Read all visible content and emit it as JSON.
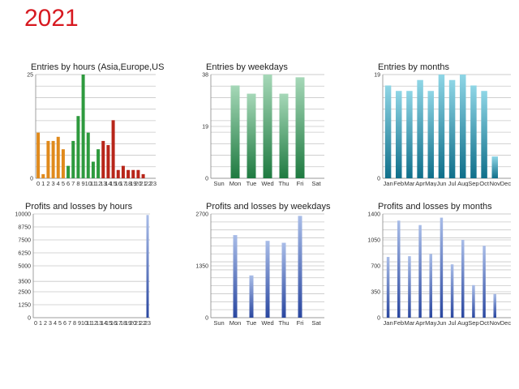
{
  "year": "2021",
  "colors": {
    "year": "#d71920",
    "grid": "#c8c8c8",
    "axis": "#888888",
    "title": "#222222",
    "tick": "#333333",
    "green_light": "#a6d8b8",
    "green_dark": "#1e7a40",
    "teal_light": "#8fd6e6",
    "teal_dark": "#0f6f8a",
    "blue_light": "#a9bde8",
    "blue_dark": "#2a47a0",
    "orange": "#e08a1c",
    "green": "#2e9a3e",
    "red": "#b8261a",
    "gold": "#e0a21c"
  },
  "chart_data": [
    {
      "id": "entries-hours",
      "type": "bar",
      "title": "Entries by hours (Asia,Europe,USA)",
      "categories": [
        "0",
        "1",
        "2",
        "3",
        "4",
        "5",
        "6",
        "7",
        "8",
        "9",
        "10",
        "11",
        "12",
        "13",
        "14",
        "15",
        "16",
        "17",
        "18",
        "19",
        "20",
        "21",
        "22",
        "23"
      ],
      "values": [
        11,
        1,
        9,
        9,
        10,
        7,
        3,
        9,
        15,
        25,
        11,
        4,
        7,
        9,
        8,
        14,
        2,
        3,
        2,
        2,
        2,
        1,
        0,
        0
      ],
      "bar_colors": [
        "#e08a1c",
        "#e08a1c",
        "#e08a1c",
        "#e08a1c",
        "#e08a1c",
        "#e08a1c",
        "#2e9a3e",
        "#2e9a3e",
        "#2e9a3e",
        "#2e9a3e",
        "#2e9a3e",
        "#2e9a3e",
        "#2e9a3e",
        "#b8261a",
        "#b8261a",
        "#b8261a",
        "#b8261a",
        "#b8261a",
        "#b8261a",
        "#b8261a",
        "#b8261a",
        "#b8261a",
        "#b8261a",
        "#e0a21c"
      ],
      "yticks": [
        0,
        25
      ],
      "ylim": [
        0,
        25
      ]
    },
    {
      "id": "entries-weekdays",
      "type": "bar",
      "title": "Entries by weekdays",
      "categories": [
        "Sun",
        "Mon",
        "Tue",
        "Wed",
        "Thu",
        "Fri",
        "Sat"
      ],
      "values": [
        0,
        34,
        31,
        38,
        31,
        37,
        0
      ],
      "gradient": "green",
      "yticks": [
        0,
        19,
        38
      ],
      "ylim": [
        0,
        38
      ]
    },
    {
      "id": "entries-months",
      "type": "bar",
      "title": "Entries by months",
      "categories": [
        "Jan",
        "Feb",
        "Mar",
        "Apr",
        "May",
        "Jun",
        "Jul",
        "Aug",
        "Sep",
        "Oct",
        "Nov",
        "Dec"
      ],
      "values": [
        17,
        16,
        16,
        18,
        16,
        19,
        18,
        19,
        17,
        16,
        4,
        0
      ],
      "gradient": "teal",
      "yticks": [
        0,
        19
      ],
      "ylim": [
        0,
        19
      ]
    },
    {
      "id": "profits-hours",
      "type": "bar",
      "title": "Profits and losses by hours",
      "categories": [
        "0",
        "1",
        "2",
        "3",
        "4",
        "5",
        "6",
        "7",
        "8",
        "9",
        "10",
        "11",
        "12",
        "13",
        "14",
        "15",
        "16",
        "17",
        "18",
        "19",
        "20",
        "21",
        "22",
        "23"
      ],
      "values": [
        0,
        0,
        0,
        0,
        0,
        0,
        0,
        0,
        0,
        0,
        0,
        0,
        0,
        0,
        0,
        0,
        0,
        0,
        0,
        0,
        0,
        0,
        0,
        9900
      ],
      "gradient": "blue",
      "yticks": [
        0,
        1250,
        2500,
        3500,
        5000,
        6250,
        7500,
        8750,
        10000
      ],
      "ylim": [
        0,
        10000
      ]
    },
    {
      "id": "profits-weekdays",
      "type": "bar",
      "title": "Profits and losses by weekdays",
      "categories": [
        "Sun",
        "Mon",
        "Tue",
        "Wed",
        "Thu",
        "Fri",
        "Sat"
      ],
      "values": [
        0,
        2150,
        1100,
        2000,
        1950,
        2650,
        0
      ],
      "gradient": "blue",
      "yticks": [
        0,
        1350,
        2700
      ],
      "ylim": [
        0,
        2700
      ]
    },
    {
      "id": "profits-months",
      "type": "bar",
      "title": "Profits and losses by months",
      "categories": [
        "Jan",
        "Feb",
        "Mar",
        "Apr",
        "May",
        "Jun",
        "Jul",
        "Aug",
        "Sep",
        "Oct",
        "Nov",
        "Dec"
      ],
      "values": [
        820,
        1310,
        830,
        1250,
        860,
        1350,
        720,
        1050,
        440,
        970,
        320,
        0
      ],
      "gradient": "blue",
      "yticks": [
        0,
        350,
        700,
        1050,
        1400
      ],
      "ylim": [
        0,
        1400
      ]
    }
  ]
}
